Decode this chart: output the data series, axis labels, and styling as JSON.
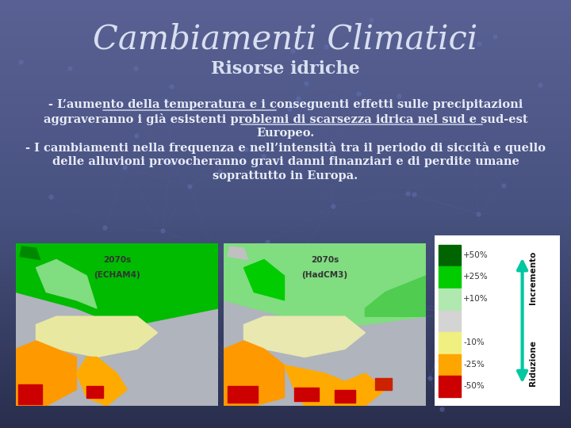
{
  "title": "Cambiamenti Climatici",
  "subtitle": "Risorse idriche",
  "bg_color": "#4a5570",
  "bg_color_dark": "#2a3050",
  "title_color": "#d8dff0",
  "subtitle_color": "#d8dff0",
  "text_color": "#e8ecf8",
  "title_fontsize": 30,
  "subtitle_fontsize": 16,
  "body_fontsize": 10.5,
  "line1a": "- ",
  "line1b": "L’aumento della temperatura",
  "line1c": " e i conseguenti effetti sulle precipitazioni",
  "line2a": "aggraveranno i già esistenti problemi di ",
  "line2b": "scarsezza idrica nel sud e sud-est",
  "line3": "Europeo.",
  "line4": "- I cambiamenti nella frequenza e nell’intensità tra il periodo di siccità e quello",
  "line5": "delle alluvioni provocheranno gravi danni finanziari e di perdite umane",
  "line6": "soprattutto in Europa.",
  "legend_labels": [
    "+50%",
    "+25%",
    "+10%",
    "-10%",
    "-25%",
    "-50%"
  ],
  "legend_colors": [
    "#006400",
    "#00cc00",
    "#b0e8b0",
    "#d8d8d8",
    "#f0f080",
    "#ffa500",
    "#cc0000"
  ],
  "legend_label_incremento": "Incremento",
  "legend_label_riduzione": "Riduzione",
  "arrow_color": "#00c8a0",
  "map1_label_line1": "2070s",
  "map1_label_line2": "(ECHAM4)",
  "map2_label_line1": "2070s",
  "map2_label_line2": "(HadCM3)",
  "map_bg": "#ffffff",
  "map_gray": "#a8a8b0",
  "network_color": "#6070a0",
  "dot_color": "#7080b0"
}
